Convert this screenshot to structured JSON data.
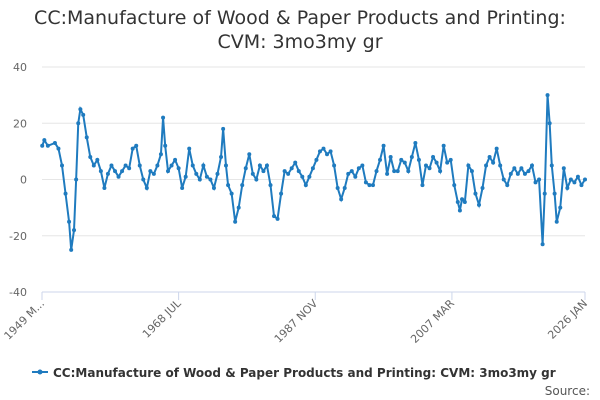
{
  "chart_data": {
    "type": "line",
    "title": "CC:Manufacture of Wood & Paper Products and Printing: CVM: 3mo3my gr",
    "source": "Source:",
    "xlim": [
      1949.17,
      2026.0
    ],
    "xticks": [
      {
        "value": 1949.17,
        "label": "1949 M..."
      },
      {
        "value": 1968.5,
        "label": "1968 JUL"
      },
      {
        "value": 1987.83,
        "label": "1987 NOV"
      },
      {
        "value": 2007.17,
        "label": "2007 MAR"
      },
      {
        "value": 2026.0,
        "label": "2026 JAN"
      }
    ],
    "ylim": [
      -40,
      40
    ],
    "yticks": [
      -40,
      -20,
      0,
      20,
      40
    ],
    "grid": true,
    "series": [
      {
        "name": "CC:Manufacture of Wood & Paper Products and Printing: CVM: 3mo3my gr",
        "color": "#1f7bbf",
        "x": [
          1949.2,
          1949.5,
          1950,
          1951,
          1951.5,
          1952,
          1952.5,
          1953,
          1953.3,
          1953.7,
          1954,
          1954.3,
          1954.6,
          1955,
          1955.5,
          1956,
          1956.5,
          1957,
          1957.5,
          1958,
          1958.5,
          1959,
          1959.5,
          1960,
          1960.5,
          1961,
          1961.5,
          1962,
          1962.5,
          1963,
          1963.5,
          1964,
          1964.5,
          1965,
          1965.5,
          1966,
          1966.3,
          1966.6,
          1967,
          1967.5,
          1968,
          1968.5,
          1969,
          1969.5,
          1970,
          1970.5,
          1971,
          1971.5,
          1972,
          1972.5,
          1973,
          1973.5,
          1974,
          1974.5,
          1974.8,
          1975.2,
          1975.5,
          1976,
          1976.5,
          1977,
          1977.5,
          1978,
          1978.5,
          1979,
          1979.5,
          1980,
          1980.5,
          1981,
          1981.5,
          1982,
          1982.5,
          1983,
          1983.5,
          1984,
          1984.5,
          1985,
          1985.5,
          1986,
          1986.5,
          1987,
          1987.5,
          1988,
          1988.5,
          1989,
          1989.5,
          1990,
          1990.5,
          1991,
          1991.5,
          1992,
          1992.5,
          1993,
          1993.5,
          1994,
          1994.5,
          1995,
          1995.5,
          1996,
          1996.5,
          1997,
          1997.5,
          1998,
          1998.5,
          1999,
          1999.5,
          2000,
          2000.5,
          2001,
          2001.5,
          2002,
          2002.5,
          2003,
          2003.5,
          2004,
          2004.5,
          2005,
          2005.5,
          2006,
          2006.5,
          2007,
          2007.5,
          2008,
          2008.3,
          2008.6,
          2009,
          2009.5,
          2010,
          2010.5,
          2011,
          2011.5,
          2012,
          2012.5,
          2013,
          2013.5,
          2014,
          2014.5,
          2015,
          2015.5,
          2016,
          2016.5,
          2017,
          2017.5,
          2018,
          2018.5,
          2019,
          2019.5,
          2020,
          2020.3,
          2020.7,
          2021,
          2021.3,
          2021.7,
          2022,
          2022.5,
          2023,
          2023.5,
          2024,
          2024.5,
          2025,
          2025.5,
          2026
        ],
        "values": [
          12,
          14,
          12,
          13,
          11,
          5,
          -5,
          -15,
          -25,
          -18,
          0,
          20,
          25,
          23,
          15,
          8,
          5,
          7,
          3,
          -3,
          2,
          5,
          3,
          1,
          3,
          5,
          4,
          11,
          12,
          5,
          0,
          -3,
          3,
          2,
          5,
          9,
          22,
          12,
          3,
          5,
          7,
          4,
          -3,
          1,
          11,
          5,
          2,
          0,
          5,
          1,
          0,
          -3,
          2,
          8,
          18,
          5,
          -2,
          -5,
          -15,
          -10,
          -2,
          4,
          9,
          2,
          0,
          5,
          3,
          5,
          -2,
          -13,
          -14,
          -5,
          3,
          2,
          4,
          6,
          3,
          1,
          -2,
          1,
          4,
          7,
          10,
          11,
          9,
          10,
          5,
          -3,
          -7,
          -3,
          2,
          3,
          1,
          4,
          5,
          -1,
          -2,
          -2,
          3,
          7,
          12,
          2,
          8,
          3,
          3,
          7,
          6,
          3,
          8,
          13,
          7,
          -2,
          5,
          4,
          8,
          6,
          3,
          12,
          6,
          7,
          -2,
          -8,
          -11,
          -7,
          -8,
          5,
          3,
          -5,
          -9,
          -3,
          5,
          8,
          6,
          11,
          5,
          0,
          -2,
          2,
          4,
          2,
          4,
          2,
          3,
          5,
          -1,
          0,
          -23,
          -5,
          30,
          20,
          5,
          -5,
          -15,
          -10,
          4,
          -3,
          0,
          -1,
          1,
          -2,
          0
        ]
      }
    ]
  }
}
